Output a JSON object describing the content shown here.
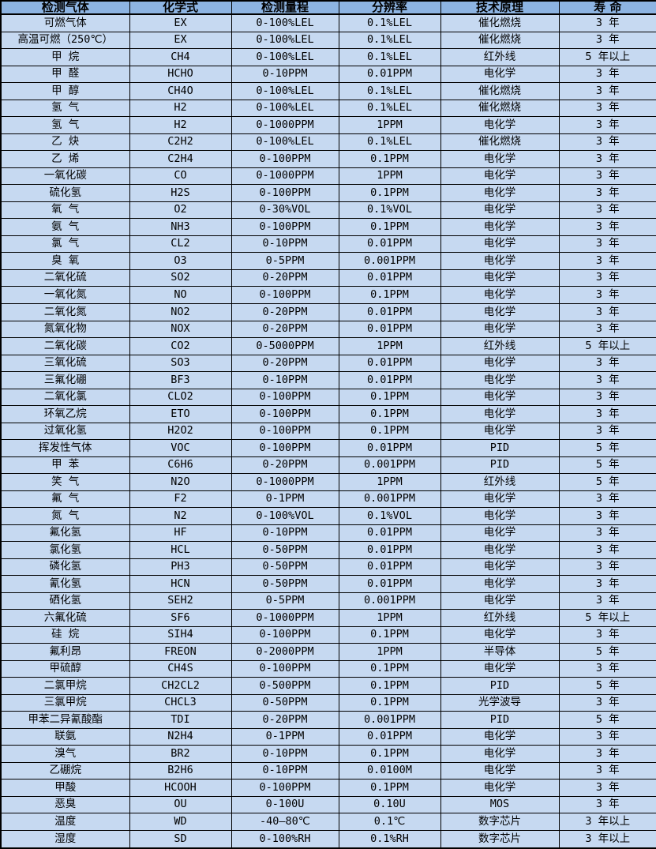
{
  "table": {
    "colors": {
      "header_bg": "#8DB4E2",
      "row_bg": "#C6D9F1",
      "border": "#000000"
    },
    "column_keys": [
      "gas",
      "formula",
      "range",
      "resolution",
      "principle",
      "lifespan"
    ],
    "columns": [
      {
        "label": "检测气体"
      },
      {
        "label": "化学式"
      },
      {
        "label": "检测量程"
      },
      {
        "label": "分辨率"
      },
      {
        "label": "技术原理"
      },
      {
        "label": "寿 命"
      }
    ],
    "rows": [
      [
        "可燃气体",
        "EX",
        "0-100%LEL",
        "0.1%LEL",
        "催化燃烧",
        "3 年"
      ],
      [
        "高温可燃（250℃）",
        "EX",
        "0-100%LEL",
        "0.1%LEL",
        "催化燃烧",
        "3 年"
      ],
      [
        "甲 烷",
        "CH4",
        "0-100%LEL",
        "0.1%LEL",
        "红外线",
        "5 年以上"
      ],
      [
        "甲 醛",
        "HCHO",
        "0-10PPM",
        "0.01PPM",
        "电化学",
        "3 年"
      ],
      [
        "甲 醇",
        "CH4O",
        "0-100%LEL",
        "0.1%LEL",
        "催化燃烧",
        "3 年"
      ],
      [
        "氢 气",
        "H2",
        "0-100%LEL",
        "0.1%LEL",
        "催化燃烧",
        "3 年"
      ],
      [
        "氢 气",
        "H2",
        "0-1000PPM",
        "1PPM",
        "电化学",
        "3 年"
      ],
      [
        "乙 炔",
        "C2H2",
        "0-100%LEL",
        "0.1%LEL",
        "催化燃烧",
        "3 年"
      ],
      [
        "乙 烯",
        "C2H4",
        "0-100PPM",
        "0.1PPM",
        "电化学",
        "3 年"
      ],
      [
        "一氧化碳",
        "CO",
        "0-1000PPM",
        "1PPM",
        "电化学",
        "3 年"
      ],
      [
        "硫化氢",
        "H2S",
        "0-100PPM",
        "0.1PPM",
        "电化学",
        "3 年"
      ],
      [
        "氧 气",
        "O2",
        "0-30%VOL",
        "0.1%VOL",
        "电化学",
        "3 年"
      ],
      [
        "氨 气",
        "NH3",
        "0-100PPM",
        "0.1PPM",
        "电化学",
        "3 年"
      ],
      [
        "氯 气",
        "CL2",
        "0-10PPM",
        "0.01PPM",
        "电化学",
        "3 年"
      ],
      [
        "臭 氧",
        "O3",
        "0-5PPM",
        "0.001PPM",
        "电化学",
        "3 年"
      ],
      [
        "二氧化硫",
        "SO2",
        "0-20PPM",
        "0.01PPM",
        "电化学",
        "3 年"
      ],
      [
        "一氧化氮",
        "NO",
        "0-100PPM",
        "0.1PPM",
        "电化学",
        "3 年"
      ],
      [
        "二氧化氮",
        "NO2",
        "0-20PPM",
        "0.01PPM",
        "电化学",
        "3 年"
      ],
      [
        "氮氧化物",
        "NOX",
        "0-20PPM",
        "0.01PPM",
        "电化学",
        "3 年"
      ],
      [
        "二氧化碳",
        "CO2",
        "0-5000PPM",
        "1PPM",
        "红外线",
        "5 年以上"
      ],
      [
        "三氧化硫",
        "SO3",
        "0-20PPM",
        "0.01PPM",
        "电化学",
        "3 年"
      ],
      [
        "三氟化硼",
        "BF3",
        "0-10PPM",
        "0.01PPM",
        "电化学",
        "3 年"
      ],
      [
        "二氧化氯",
        "CLO2",
        "0-100PPM",
        "0.1PPM",
        "电化学",
        "3 年"
      ],
      [
        "环氧乙烷",
        "ETO",
        "0-100PPM",
        "0.1PPM",
        "电化学",
        "3 年"
      ],
      [
        "过氧化氢",
        "H2O2",
        "0-100PPM",
        "0.1PPM",
        "电化学",
        "3 年"
      ],
      [
        "挥发性气体",
        "VOC",
        "0-100PPM",
        "0.01PPM",
        "PID",
        "5 年"
      ],
      [
        "甲 苯",
        "C6H6",
        "0-20PPM",
        "0.001PPM",
        "PID",
        "5 年"
      ],
      [
        "笑 气",
        "N2O",
        "0-1000PPM",
        "1PPM",
        "红外线",
        "5 年"
      ],
      [
        "氟 气",
        "F2",
        "0-1PPM",
        "0.001PPM",
        "电化学",
        "3 年"
      ],
      [
        "氮 气",
        "N2",
        "0-100%VOL",
        "0.1%VOL",
        "电化学",
        "3 年"
      ],
      [
        "氟化氢",
        "HF",
        "0-10PPM",
        "0.01PPM",
        "电化学",
        "3 年"
      ],
      [
        "氯化氢",
        "HCL",
        "0-50PPM",
        "0.01PPM",
        "电化学",
        "3 年"
      ],
      [
        "磷化氢",
        "PH3",
        "0-50PPM",
        "0.01PPM",
        "电化学",
        "3 年"
      ],
      [
        "氰化氢",
        "HCN",
        "0-50PPM",
        "0.01PPM",
        "电化学",
        "3 年"
      ],
      [
        "硒化氢",
        "SEH2",
        "0-5PPM",
        "0.001PPM",
        "电化学",
        "3 年"
      ],
      [
        "六氟化硫",
        "SF6",
        "0-1000PPM",
        "1PPM",
        "红外线",
        "5 年以上"
      ],
      [
        "硅 烷",
        "SIH4",
        "0-100PPM",
        "0.1PPM",
        "电化学",
        "3 年"
      ],
      [
        "氟利昂",
        "FREON",
        "0-2000PPM",
        "1PPM",
        "半导体",
        "5 年"
      ],
      [
        "甲硫醇",
        "CH4S",
        "0-100PPM",
        "0.1PPM",
        "电化学",
        "3 年"
      ],
      [
        "二氯甲烷",
        "CH2CL2",
        "0-500PPM",
        "0.1PPM",
        "PID",
        "5 年"
      ],
      [
        "三氯甲烷",
        "CHCL3",
        "0-50PPM",
        "0.1PPM",
        "光学波导",
        "3 年"
      ],
      [
        "甲苯二异氰酸酯",
        "TDI",
        "0-20PPM",
        "0.001PPM",
        "PID",
        "5 年"
      ],
      [
        "联氨",
        "N2H4",
        "0-1PPM",
        "0.01PPM",
        "电化学",
        "3 年"
      ],
      [
        "溴气",
        "BR2",
        "0-10PPM",
        "0.1PPM",
        "电化学",
        "3 年"
      ],
      [
        "乙硼烷",
        "B2H6",
        "0-10PPM",
        "0.0100M",
        "电化学",
        "3 年"
      ],
      [
        "甲酸",
        "HCOOH",
        "0-100PPM",
        "0.1PPM",
        "电化学",
        "3 年"
      ],
      [
        "恶臭",
        "OU",
        "0-100U",
        "0.10U",
        "MOS",
        "3 年"
      ],
      [
        "温度",
        "WD",
        "-40—80℃",
        "0.1℃",
        "数字芯片",
        "3 年以上"
      ],
      [
        "湿度",
        "SD",
        "0-100%RH",
        "0.1%RH",
        "数字芯片",
        "3 年以上"
      ]
    ]
  }
}
